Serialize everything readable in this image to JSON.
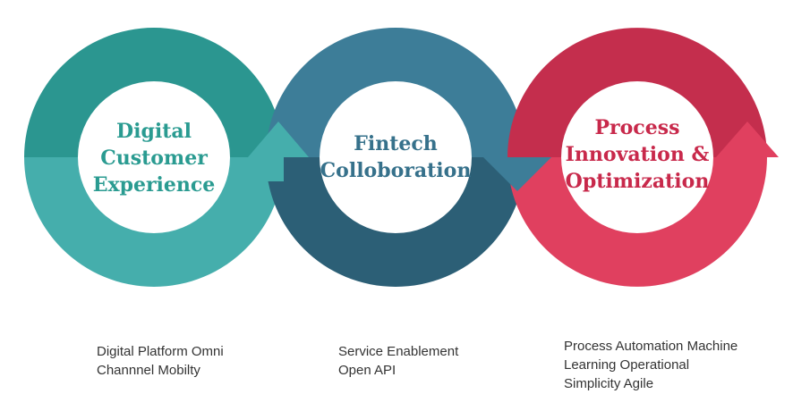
{
  "colors": {
    "teal_light": "#45aeac",
    "teal_dark": "#2b9690",
    "teal_text": "#2a9b91",
    "blue_light": "#3d7d98",
    "blue_dark": "#2c5f76",
    "blue_text": "#36718b",
    "red_light": "#e0405f",
    "red_dark": "#c42e4d",
    "red_text": "#c8294b",
    "caption": "#333333"
  },
  "stages": [
    {
      "title": "Digital\nCustomer\nExperience",
      "caption": "Digital Platform Omni\nChannnel Mobilty"
    },
    {
      "title": "Fintech\nColloboration",
      "caption": "Service Enablement\nOpen API"
    },
    {
      "title": "Process\nInnovation &\nOptimization",
      "caption": "Process Automation Machine\nLearning Operational\nSimplicity Agile"
    }
  ]
}
